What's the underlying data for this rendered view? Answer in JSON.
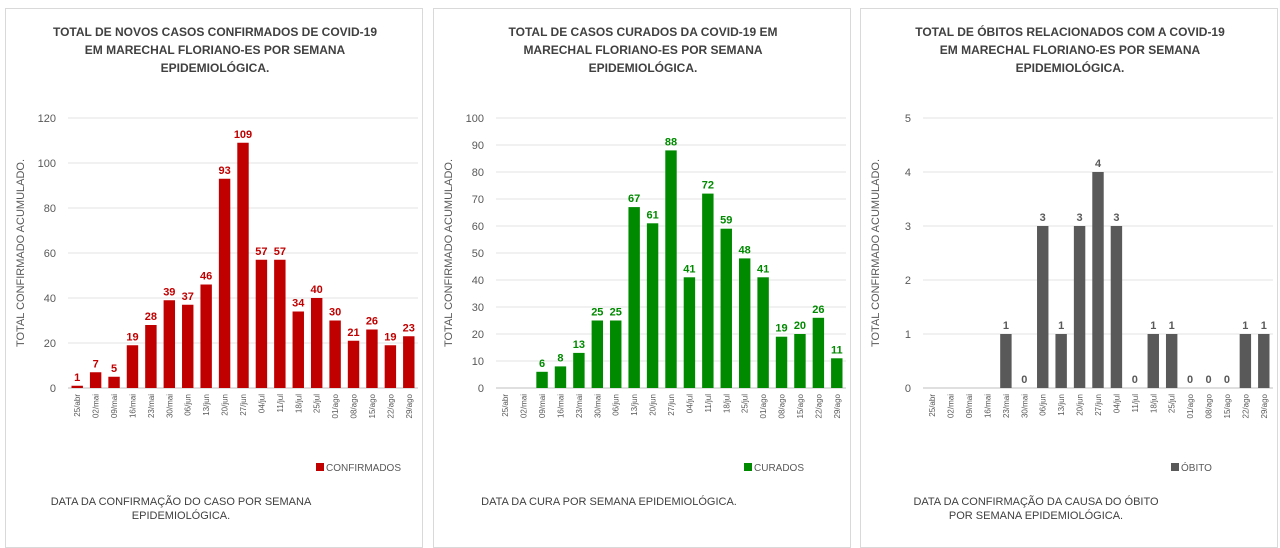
{
  "chart_data": [
    {
      "type": "bar",
      "title": "TOTAL DE NOVOS CASOS CONFIRMADOS DE COVID-19 EM MARECHAL FLORIANO-ES POR SEMANA EPIDEMIOLÓGICA.",
      "y_label": "TOTAL CONFIRMADO ACUMULADO.",
      "x_label": "DATA DA CONFIRMAÇÃO DO CASO POR SEMANA EPIDEMIOLÓGICA.",
      "categories": [
        "25/abr",
        "02/mai",
        "09/mai",
        "16/mai",
        "23/mai",
        "30/mai",
        "06/jun",
        "13/jun",
        "20/jun",
        "27/jun",
        "04/jul",
        "11/jul",
        "18/jul",
        "25/jul",
        "01/ago",
        "08/ago",
        "15/ago",
        "22/ago",
        "29/ago"
      ],
      "series": [
        {
          "name": "CONFIRMADOS",
          "color": "#c00000",
          "values": [
            1,
            7,
            5,
            19,
            28,
            39,
            37,
            46,
            93,
            109,
            57,
            57,
            34,
            40,
            30,
            21,
            26,
            19,
            23
          ]
        }
      ],
      "ylim": [
        0,
        120
      ],
      "yticks": [
        0,
        20,
        40,
        60,
        80,
        100,
        120
      ],
      "grid": true,
      "legend": "bottom-right"
    },
    {
      "type": "bar",
      "title": "TOTAL DE CASOS CURADOS DA COVID-19 EM MARECHAL FLORIANO-ES POR SEMANA EPIDEMIOLÓGICA.",
      "y_label": "TOTAL CONFIRMADO ACUMULADO.",
      "x_label": "DATA DA CURA POR SEMANA EPIDEMIOLÓGICA.",
      "categories": [
        "25/abr",
        "02/mai",
        "09/mai",
        "16/mai",
        "23/mai",
        "30/mai",
        "06/jun",
        "13/jun",
        "20/jun",
        "27/jun",
        "04/jul",
        "11/jul",
        "18/jul",
        "25/jul",
        "01/ago",
        "08/ago",
        "15/ago",
        "22/ago",
        "29/ago"
      ],
      "series": [
        {
          "name": "CURADOS",
          "color": "#008a00",
          "values": [
            null,
            null,
            6,
            8,
            13,
            25,
            25,
            67,
            61,
            88,
            41,
            72,
            59,
            48,
            41,
            19,
            20,
            26,
            11
          ]
        }
      ],
      "ylim": [
        0,
        100
      ],
      "yticks": [
        0,
        10,
        20,
        30,
        40,
        50,
        60,
        70,
        80,
        90,
        100
      ],
      "grid": true,
      "legend": "bottom-right"
    },
    {
      "type": "bar",
      "title": "TOTAL DE ÓBITOS RELACIONADOS COM A COVID-19 EM MARECHAL FLORIANO-ES POR SEMANA EPIDEMIOLÓGICA.",
      "y_label": "TOTAL CONFIRMADO ACUMULADO.",
      "x_label": "DATA DA CONFIRMAÇÃO DA CAUSA DO ÓBITO POR SEMANA EPIDEMIOLÓGICA.",
      "categories": [
        "25/abr",
        "02/mai",
        "09/mai",
        "16/mai",
        "23/mai",
        "30/mai",
        "06/jun",
        "13/jun",
        "20/jun",
        "27/jun",
        "04/jul",
        "11/jul",
        "18/jul",
        "25/jul",
        "01/ago",
        "08/ago",
        "15/ago",
        "22/ago",
        "29/ago"
      ],
      "series": [
        {
          "name": "ÓBITO",
          "color": "#595959",
          "values": [
            null,
            null,
            null,
            null,
            1,
            0,
            3,
            1,
            3,
            4,
            3,
            0,
            1,
            1,
            0,
            0,
            0,
            1,
            1
          ]
        }
      ],
      "ylim": [
        0,
        5
      ],
      "yticks": [
        0,
        1,
        2,
        3,
        4,
        5
      ],
      "grid": true,
      "legend": "bottom-right"
    }
  ]
}
